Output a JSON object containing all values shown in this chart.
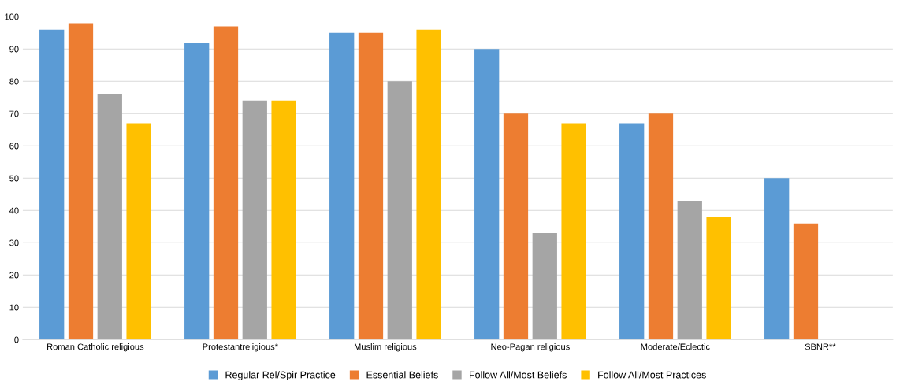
{
  "chart_data": {
    "type": "bar",
    "categories": [
      "Roman Catholic religious",
      "Protestantreligious*",
      "Muslim religious",
      "Neo-Pagan religious",
      "Moderate/Eclectic",
      "SBNR**"
    ],
    "series": [
      {
        "name": "Regular Rel/Spir Practice",
        "color": "#5b9bd5",
        "values": [
          96,
          92,
          95,
          90,
          67,
          50
        ]
      },
      {
        "name": "Essential Beliefs",
        "color": "#ed7d31",
        "values": [
          98,
          97,
          95,
          70,
          70,
          36
        ]
      },
      {
        "name": "Follow All/Most Beliefs",
        "color": "#a5a5a5",
        "values": [
          76,
          74,
          80,
          33,
          43,
          null
        ]
      },
      {
        "name": "Follow All/Most Practices",
        "color": "#ffc000",
        "values": [
          67,
          74,
          96,
          67,
          38,
          null
        ]
      }
    ],
    "ylim": [
      0,
      100
    ],
    "yticks": [
      0,
      10,
      20,
      30,
      40,
      50,
      60,
      70,
      80,
      90,
      100
    ],
    "grid": "y",
    "legend": "bottom"
  }
}
